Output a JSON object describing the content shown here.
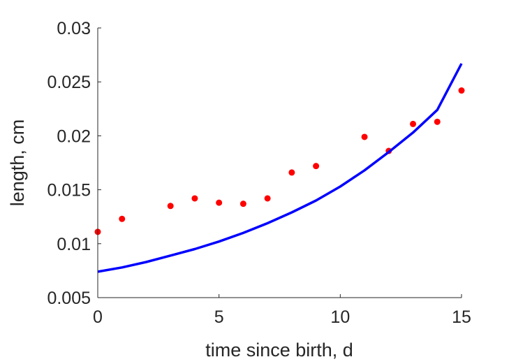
{
  "chart_data": {
    "type": "scatter",
    "title": "",
    "xlabel": "time since birth, d",
    "ylabel": "length, cm",
    "xlim": [
      0,
      15
    ],
    "ylim": [
      0.005,
      0.03
    ],
    "xticks": [
      0,
      5,
      10,
      15
    ],
    "yticks": [
      0.005,
      0.01,
      0.015,
      0.02,
      0.025,
      0.03
    ],
    "xtick_labels": [
      "0",
      "5",
      "10",
      "15"
    ],
    "ytick_labels": [
      "0.005",
      "0.01",
      "0.015",
      "0.02",
      "0.025",
      "0.03"
    ],
    "grid": false,
    "legend": "none",
    "series": [
      {
        "type": "scatter",
        "color": "#ff0000",
        "x": [
          0,
          1,
          3,
          4,
          5,
          6,
          7,
          8,
          9,
          11,
          12,
          13,
          14,
          15
        ],
        "y": [
          0.0111,
          0.0123,
          0.0135,
          0.0142,
          0.0138,
          0.0137,
          0.0142,
          0.0166,
          0.0172,
          0.0199,
          0.0186,
          0.0211,
          0.0213,
          0.0242
        ]
      },
      {
        "type": "line",
        "color": "#0000ff",
        "x": [
          0,
          1,
          2,
          3,
          4,
          5,
          6,
          7,
          8,
          9,
          10,
          11,
          12,
          13,
          14,
          15
        ],
        "y": [
          0.0074,
          0.0078,
          0.0083,
          0.0089,
          0.0095,
          0.0102,
          0.011,
          0.0119,
          0.0129,
          0.014,
          0.0153,
          0.0168,
          0.0185,
          0.0203,
          0.0224,
          0.0267
        ]
      }
    ]
  }
}
